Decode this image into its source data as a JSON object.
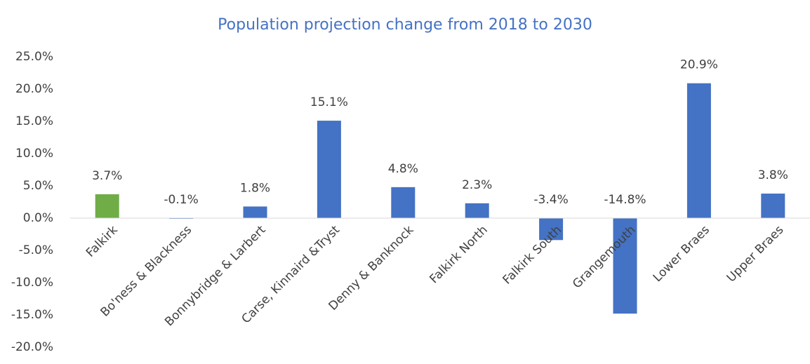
{
  "chart_data": {
    "type": "bar",
    "title": "Population projection change from 2018 to 2030",
    "categories": [
      "Falkirk",
      "Bo'ness & Blackness",
      "Bonnybridge & Larbert",
      "Carse, Kinnaird &Tryst",
      "Denny & Banknock",
      "Falkirk North",
      "Falkirk South",
      "Grangemouth",
      "Lower Braes",
      "Upper Braes"
    ],
    "values": [
      3.7,
      -0.1,
      1.8,
      15.1,
      4.8,
      2.3,
      -3.4,
      -14.8,
      20.9,
      3.8
    ],
    "value_labels": [
      "3.7%",
      "-0.1%",
      "1.8%",
      "15.1%",
      "4.8%",
      "2.3%",
      "-3.4%",
      "-14.8%",
      "20.9%",
      "3.8%"
    ],
    "colors": [
      "#70ad47",
      "#4472c4",
      "#4472c4",
      "#4472c4",
      "#4472c4",
      "#4472c4",
      "#4472c4",
      "#4472c4",
      "#4472c4",
      "#4472c4"
    ],
    "ylim": [
      -20,
      25
    ],
    "yticks": [
      {
        "value": -20,
        "label": "-20.0%"
      },
      {
        "value": -15,
        "label": "-15.0%"
      },
      {
        "value": -10,
        "label": "-10.0%"
      },
      {
        "value": -5,
        "label": "-5.0%"
      },
      {
        "value": 0,
        "label": "0.0%"
      },
      {
        "value": 5,
        "label": "5.0%"
      },
      {
        "value": 10,
        "label": "10.0%"
      },
      {
        "value": 15,
        "label": "15.0%"
      },
      {
        "value": 20,
        "label": "20.0%"
      },
      {
        "value": 25,
        "label": "25.0%"
      }
    ],
    "grid": false
  }
}
